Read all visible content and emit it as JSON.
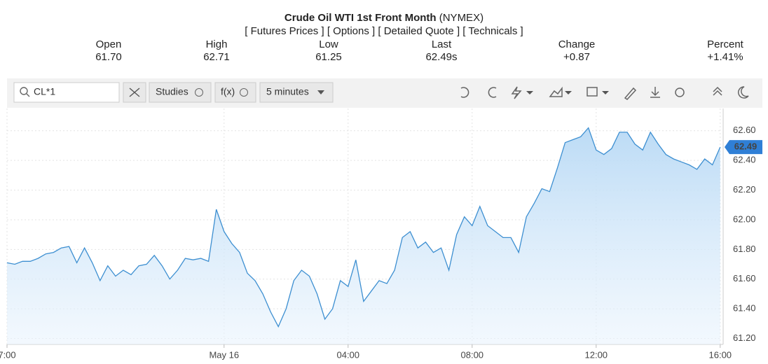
{
  "header": {
    "title": "Crude Oil WTI 1st Front Month",
    "exchange": "(NYMEX)",
    "links": [
      "[ Futures Prices ]",
      "[ Options ]",
      "[ Detailed Quote ]",
      "[ Technicals ]"
    ]
  },
  "quote": [
    {
      "label": "Open",
      "value": "61.70"
    },
    {
      "label": "High",
      "value": "62.71"
    },
    {
      "label": "Low",
      "value": "61.25"
    },
    {
      "label": "Last",
      "value": "62.49s"
    },
    {
      "label": "Change",
      "value": "+0.87"
    },
    {
      "label": "Percent",
      "value": "+1.41%"
    }
  ],
  "toolbar": {
    "symbol": "CL*1",
    "studies": "Studies",
    "function": "f(x)",
    "interval": "5 minutes"
  },
  "chart_data": {
    "type": "area",
    "color": "#3d8fd1",
    "x": [
      0,
      0.25,
      0.5,
      0.75,
      1,
      1.25,
      1.5,
      1.75,
      2,
      2.25,
      2.5,
      2.75,
      3,
      3.25,
      3.5,
      3.75,
      4,
      4.25,
      4.5,
      4.75,
      5,
      5.25,
      5.5,
      5.75,
      6,
      6.25,
      6.5,
      6.75,
      7,
      7.25,
      7.5,
      7.75,
      8,
      8.25,
      8.5,
      8.75,
      9,
      9.25,
      9.5,
      9.75,
      10,
      10.25,
      10.5,
      10.75,
      11,
      11.25,
      11.5,
      11.75,
      12,
      12.25,
      12.5,
      12.75,
      13,
      13.25,
      13.5,
      13.75,
      14,
      14.25,
      14.5,
      14.75,
      15,
      15.25,
      15.5,
      15.75,
      16,
      16.25,
      16.5,
      16.75,
      17,
      17.25,
      17.5,
      17.75,
      18,
      18.25,
      18.5,
      18.75,
      19,
      19.25,
      19.5,
      19.75,
      20,
      20.25,
      20.5,
      20.75,
      21,
      21.25,
      21.5,
      21.75,
      22,
      22.25,
      22.5,
      22.75,
      23
    ],
    "values": [
      61.71,
      61.7,
      61.72,
      61.72,
      61.74,
      61.77,
      61.78,
      61.81,
      61.82,
      61.71,
      61.81,
      61.71,
      61.59,
      61.69,
      61.62,
      61.66,
      61.63,
      61.69,
      61.7,
      61.76,
      61.69,
      61.6,
      61.66,
      61.74,
      61.73,
      61.74,
      61.72,
      62.07,
      61.92,
      61.84,
      61.78,
      61.64,
      61.59,
      61.5,
      61.38,
      61.28,
      61.4,
      61.59,
      61.66,
      61.62,
      61.5,
      61.33,
      61.4,
      61.59,
      61.55,
      61.73,
      61.45,
      61.52,
      61.59,
      61.57,
      61.66,
      61.88,
      61.92,
      61.81,
      61.85,
      61.78,
      61.81,
      61.66,
      61.9,
      62.02,
      61.96,
      62.09,
      61.96,
      61.92,
      61.88,
      61.88,
      61.78,
      62.02,
      62.11,
      62.21,
      62.19,
      62.35,
      62.52,
      62.54,
      62.56,
      62.62,
      62.47,
      62.44,
      62.48,
      62.59,
      62.59,
      62.51,
      62.47,
      62.59,
      62.51,
      62.44,
      62.41,
      62.39,
      62.37,
      62.34,
      62.41,
      62.37,
      62.49
    ],
    "last_price": 62.49,
    "xlim": [
      0,
      23.05
    ],
    "xticks": [
      {
        "value": 0,
        "label": "7:00"
      },
      {
        "value": 7,
        "label": "May 16"
      },
      {
        "value": 11,
        "label": "04:00"
      },
      {
        "value": 15,
        "label": "08:00"
      },
      {
        "value": 19,
        "label": "12:00"
      },
      {
        "value": 23,
        "label": "16:00"
      }
    ],
    "ylim": [
      61.16,
      62.75
    ],
    "yticks": [
      {
        "value": 61.2,
        "label": "61.20"
      },
      {
        "value": 61.4,
        "label": "61.40"
      },
      {
        "value": 61.6,
        "label": "61.60"
      },
      {
        "value": 61.8,
        "label": "61.80"
      },
      {
        "value": 62.0,
        "label": "62.00"
      },
      {
        "value": 62.2,
        "label": "62.20"
      },
      {
        "value": 62.4,
        "label": "62.40"
      },
      {
        "value": 62.6,
        "label": "62.60"
      }
    ],
    "grid": true
  }
}
